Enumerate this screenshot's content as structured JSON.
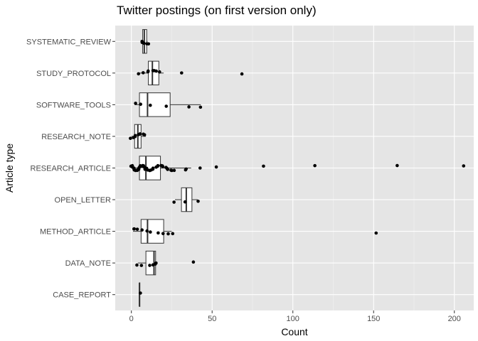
{
  "chart_data": {
    "type": "boxplot",
    "title": "Twitter postings (on first version only)",
    "xlabel": "Count",
    "ylabel": "Article type",
    "xlim": [
      -10,
      212
    ],
    "x_ticks": [
      0,
      50,
      100,
      150,
      200
    ],
    "grid": true,
    "categories": [
      "SYSTEMATIC_REVIEW",
      "STUDY_PROTOCOL",
      "SOFTWARE_TOOLS",
      "RESEARCH_NOTE",
      "RESEARCH_ARTICLE",
      "OPEN_LETTER",
      "METHOD_ARTICLE",
      "DATA_NOTE",
      "CASE_REPORT"
    ],
    "boxes": [
      {
        "category": "SYSTEMATIC_REVIEW",
        "q1": 7,
        "median": 8,
        "q3": 9.5,
        "whisker_low": 6,
        "whisker_high": 10
      },
      {
        "category": "STUDY_PROTOCOL",
        "q1": 10.5,
        "median": 13,
        "q3": 17,
        "whisker_low": 5,
        "whisker_high": 20
      },
      {
        "category": "SOFTWARE_TOOLS",
        "q1": 5,
        "median": 10,
        "q3": 24,
        "whisker_low": 2,
        "whisker_high": 43
      },
      {
        "category": "RESEARCH_NOTE",
        "q1": 2,
        "median": 4,
        "q3": 6,
        "whisker_low": 0,
        "whisker_high": 9
      },
      {
        "category": "RESEARCH_ARTICLE",
        "q1": 5,
        "median": 9,
        "q3": 18,
        "whisker_low": 0,
        "whisker_high": 37
      },
      {
        "category": "OPEN_LETTER",
        "q1": 31,
        "median": 34,
        "q3": 37.5,
        "whisker_low": 27,
        "whisker_high": 41
      },
      {
        "category": "METHOD_ARTICLE",
        "q1": 6,
        "median": 10,
        "q3": 20,
        "whisker_low": 1,
        "whisker_high": 25
      },
      {
        "category": "DATA_NOTE",
        "q1": 9,
        "median": 14,
        "q3": 15,
        "whisker_low": 4,
        "whisker_high": 15
      },
      {
        "category": "CASE_REPORT",
        "q1": 5,
        "median": 5,
        "q3": 5,
        "whisker_low": 5,
        "whisker_high": 5
      }
    ],
    "points": [
      {
        "category": "SYSTEMATIC_REVIEW",
        "x": [
          6,
          7,
          8,
          9,
          11
        ]
      },
      {
        "category": "STUDY_PROTOCOL",
        "x": [
          5,
          7,
          10,
          11,
          13,
          14,
          16,
          17,
          31,
          69
        ]
      },
      {
        "category": "SOFTWARE_TOOLS",
        "x": [
          2,
          6,
          12,
          21,
          36,
          43
        ]
      },
      {
        "category": "RESEARCH_NOTE",
        "x": [
          0,
          1,
          2,
          3,
          4,
          5,
          6,
          7,
          8
        ]
      },
      {
        "category": "RESEARCH_ARTICLE",
        "x": [
          0,
          0,
          1,
          1,
          2,
          2,
          3,
          3,
          4,
          4,
          5,
          5,
          6,
          6,
          7,
          7,
          8,
          8,
          9,
          9,
          10,
          11,
          12,
          12,
          13,
          14,
          15,
          16,
          17,
          18,
          19,
          20,
          21,
          22,
          23,
          24,
          25,
          27,
          33,
          34,
          43,
          52,
          82,
          114,
          164,
          206
        ]
      },
      {
        "category": "OPEN_LETTER",
        "x": [
          27,
          33,
          41
        ]
      },
      {
        "category": "METHOD_ARTICLE",
        "x": [
          1,
          2,
          4,
          6,
          10,
          12,
          16,
          20,
          23,
          25,
          152
        ]
      },
      {
        "category": "DATA_NOTE",
        "x": [
          4,
          6,
          11,
          14,
          14.5,
          15,
          39
        ]
      },
      {
        "category": "CASE_REPORT",
        "x": [
          5
        ]
      }
    ]
  }
}
